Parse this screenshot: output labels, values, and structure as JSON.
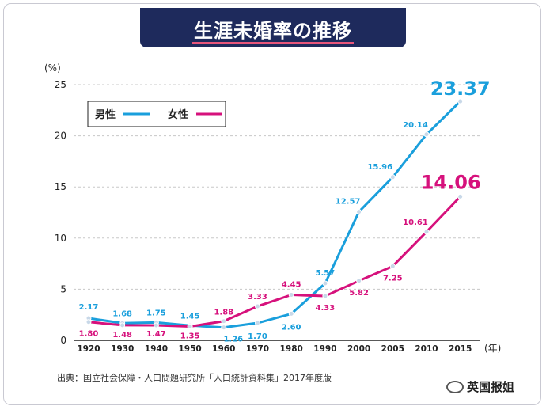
{
  "page": {
    "title": "生涯未婚率の推移",
    "source": "出典：国立社会保障・人口問題研究所「人口統計資料集」2017年度版",
    "watermark": "英国报姐"
  },
  "colors": {
    "male": "#1a9fdc",
    "female": "#d6117c",
    "title_bg": "#1e2a5c",
    "accent": "#e8557a"
  },
  "chart_data": {
    "type": "line",
    "title": "生涯未婚率の推移",
    "x_unit": "(年)",
    "y_unit": "(%)",
    "ylim": [
      0,
      25
    ],
    "yticks": [
      0,
      5,
      10,
      15,
      20,
      25
    ],
    "categories": [
      "1920",
      "1930",
      "1940",
      "1950",
      "1960",
      "1970",
      "1980",
      "1990",
      "2000",
      "2005",
      "2010",
      "2015"
    ],
    "legend": {
      "placement": "top-left"
    },
    "series": [
      {
        "name": "男性",
        "key": "male",
        "values": [
          2.17,
          1.68,
          1.75,
          1.45,
          1.26,
          1.7,
          2.6,
          5.57,
          12.57,
          15.96,
          20.14,
          23.37
        ],
        "labels": [
          "2.17",
          "1.68",
          "1.75",
          "1.45",
          "1.26",
          "1.70",
          "2.60",
          "5.57",
          "12.57",
          "15.96",
          "20.14",
          "23.37"
        ]
      },
      {
        "name": "女性",
        "key": "female",
        "values": [
          1.8,
          1.48,
          1.47,
          1.35,
          1.88,
          3.33,
          4.45,
          4.33,
          5.82,
          7.25,
          10.61,
          14.06
        ],
        "labels": [
          "1.80",
          "1.48",
          "1.47",
          "1.35",
          "1.88",
          "3.33",
          "4.45",
          "4.33",
          "5.82",
          "7.25",
          "10.61",
          "14.06"
        ]
      }
    ]
  }
}
